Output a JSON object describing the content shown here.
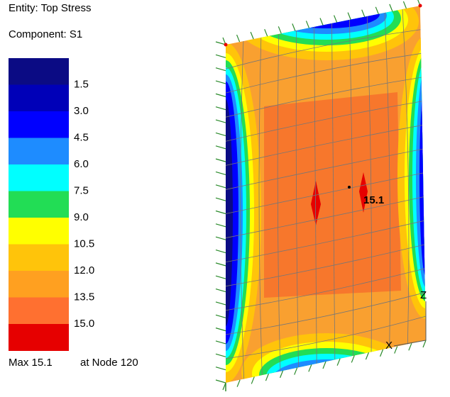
{
  "header": {
    "entity": "Entity: Top Stress",
    "component": "Component: S1"
  },
  "legend": {
    "colors": [
      "#0b0b84",
      "#0000b8",
      "#0000ff",
      "#1e8cff",
      "#00ffff",
      "#22dd55",
      "#ffff00",
      "#ffc40a",
      "#ffa020",
      "#ff7030",
      "#e60000"
    ],
    "labels": [
      "1.5",
      "3.0",
      "4.5",
      "6.0",
      "7.5",
      "9.0",
      "10.5",
      "12.0",
      "13.5",
      "15.0"
    ]
  },
  "footer": {
    "max": "Max 15.1",
    "node": "at Node 120"
  },
  "model": {
    "max_label": "15.1",
    "axis_z": "Z",
    "axis_x": "X"
  }
}
